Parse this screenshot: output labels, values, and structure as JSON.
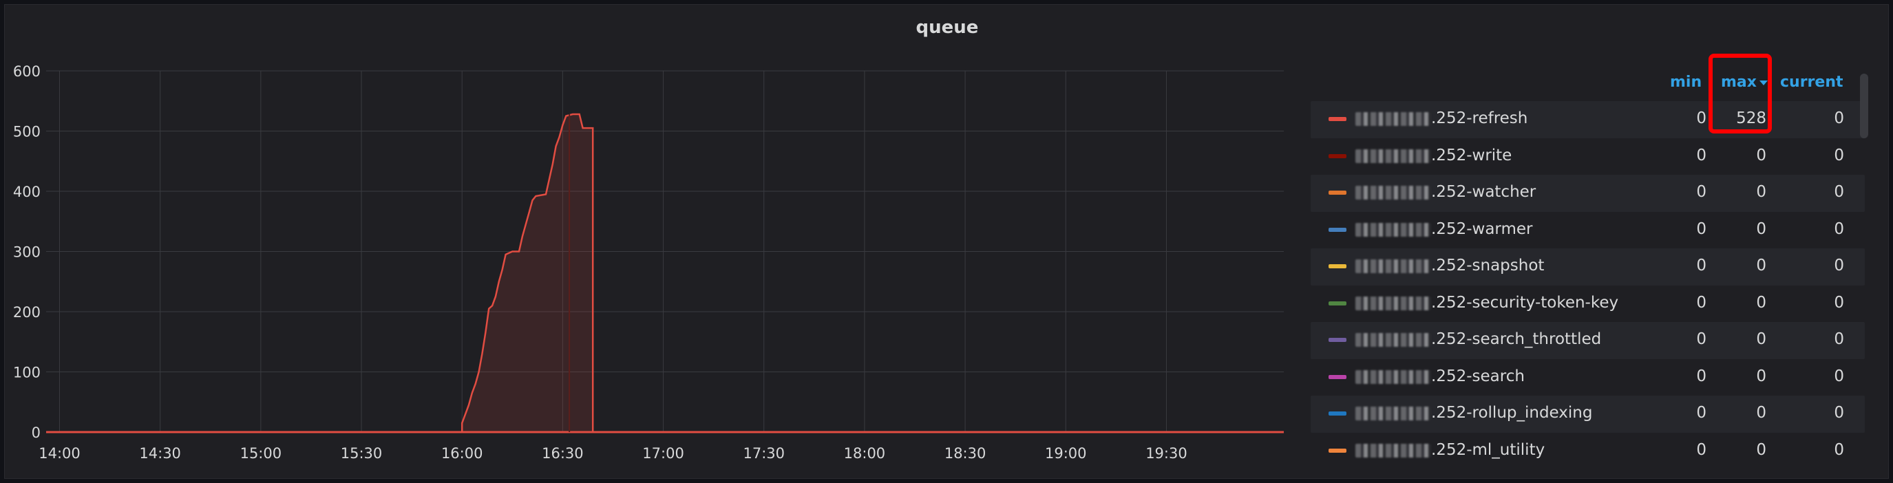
{
  "panel": {
    "title": "queue"
  },
  "chart_data": {
    "type": "area",
    "title": "queue",
    "x_ticks": [
      "14:00",
      "14:30",
      "15:00",
      "15:30",
      "16:00",
      "16:30",
      "17:00",
      "17:30",
      "18:00",
      "18:30",
      "19:00",
      "19:30"
    ],
    "xlim": [
      "13:56",
      "20:05"
    ],
    "y_ticks": [
      "0",
      "100",
      "200",
      "300",
      "400",
      "500",
      "600"
    ],
    "ylim": [
      0,
      600
    ],
    "grid": true,
    "series": [
      {
        "name": "252-refresh",
        "color": "#e24d42",
        "points": [
          [
            "16:00",
            0
          ],
          [
            "16:00",
            15
          ],
          [
            "16:01",
            30
          ],
          [
            "16:02",
            45
          ],
          [
            "16:03",
            65
          ],
          [
            "16:04",
            80
          ],
          [
            "16:05",
            100
          ],
          [
            "16:06",
            130
          ],
          [
            "16:07",
            165
          ],
          [
            "16:08",
            205
          ],
          [
            "16:09",
            210
          ],
          [
            "16:10",
            225
          ],
          [
            "16:11",
            250
          ],
          [
            "16:12",
            270
          ],
          [
            "16:13",
            295
          ],
          [
            "16:15",
            300
          ],
          [
            "16:17",
            300
          ],
          [
            "16:18",
            325
          ],
          [
            "16:19",
            345
          ],
          [
            "16:20",
            365
          ],
          [
            "16:21",
            385
          ],
          [
            "16:22",
            392
          ],
          [
            "16:25",
            395
          ],
          [
            "16:26",
            420
          ],
          [
            "16:27",
            445
          ],
          [
            "16:28",
            475
          ],
          [
            "16:29",
            490
          ],
          [
            "16:30",
            510
          ],
          [
            "16:31",
            525
          ],
          [
            "16:33",
            528
          ],
          [
            "16:35",
            528
          ],
          [
            "16:36",
            505
          ],
          [
            "16:39",
            505
          ],
          [
            "16:39",
            0
          ]
        ]
      }
    ]
  },
  "legend": {
    "columns": {
      "min": "min",
      "max": "max",
      "current": "current"
    },
    "sort_column": "max",
    "rows": [
      {
        "name": ".252-refresh",
        "color": "#e24d42",
        "min": "0",
        "max": "528",
        "current": "0"
      },
      {
        "name": ".252-write",
        "color": "#890f02",
        "min": "0",
        "max": "0",
        "current": "0"
      },
      {
        "name": ".252-watcher",
        "color": "#e0752d",
        "min": "0",
        "max": "0",
        "current": "0"
      },
      {
        "name": ".252-warmer",
        "color": "#447ebc",
        "min": "0",
        "max": "0",
        "current": "0"
      },
      {
        "name": ".252-snapshot",
        "color": "#eab839",
        "min": "0",
        "max": "0",
        "current": "0"
      },
      {
        "name": ".252-security-token-key",
        "color": "#508642",
        "min": "0",
        "max": "0",
        "current": "0"
      },
      {
        "name": ".252-search_throttled",
        "color": "#705da0",
        "min": "0",
        "max": "0",
        "current": "0"
      },
      {
        "name": ".252-search",
        "color": "#ba43a9",
        "min": "0",
        "max": "0",
        "current": "0"
      },
      {
        "name": ".252-rollup_indexing",
        "color": "#1f78c1",
        "min": "0",
        "max": "0",
        "current": "0"
      },
      {
        "name": ".252-ml_utility",
        "color": "#ef843c",
        "min": "0",
        "max": "0",
        "current": "0"
      }
    ]
  }
}
